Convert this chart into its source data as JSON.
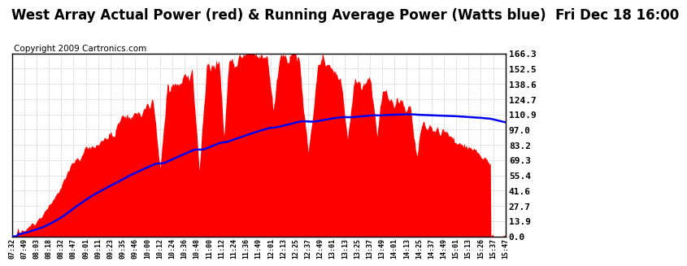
{
  "title": "West Array Actual Power (red) & Running Average Power (Watts blue)  Fri Dec 18 16:00",
  "copyright": "Copyright 2009 Cartronics.com",
  "ytick_values": [
    0.0,
    13.9,
    27.7,
    41.6,
    55.4,
    69.3,
    83.2,
    97.0,
    110.9,
    124.7,
    138.6,
    152.5,
    166.3
  ],
  "ymax": 166.3,
  "ymin": 0.0,
  "bg_color": "#ffffff",
  "plot_bg_color": "#ffffff",
  "area_color": "#ff0000",
  "line_color": "#0000ee",
  "title_fontsize": 12,
  "copyright_fontsize": 7.5,
  "xtick_labels": [
    "07:32",
    "07:49",
    "08:03",
    "08:18",
    "08:32",
    "08:47",
    "09:01",
    "09:11",
    "09:23",
    "09:35",
    "09:46",
    "10:00",
    "10:12",
    "10:24",
    "10:36",
    "10:48",
    "11:00",
    "11:12",
    "11:24",
    "11:36",
    "11:49",
    "12:01",
    "12:13",
    "12:25",
    "12:37",
    "12:49",
    "13:01",
    "13:13",
    "13:25",
    "13:37",
    "13:49",
    "14:01",
    "14:13",
    "14:25",
    "14:37",
    "14:49",
    "15:01",
    "15:13",
    "15:26",
    "15:37",
    "15:47"
  ],
  "grid_color": "#cccccc",
  "grid_style": "--"
}
